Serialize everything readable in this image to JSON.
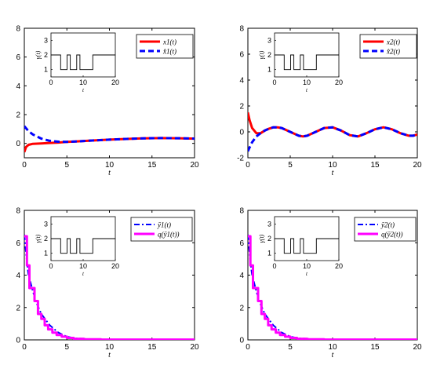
{
  "chart_data": [
    {
      "type": "line",
      "xlabel": "t",
      "xlim": [
        0,
        20
      ],
      "ylim": [
        -1,
        8
      ],
      "xticks": [
        "0",
        "5",
        "10",
        "15",
        "20"
      ],
      "yticks": [
        "0",
        "2",
        "4",
        "6",
        "8"
      ],
      "legend_position": "top-right",
      "series": [
        {
          "name": "x1(t)",
          "color": "#ff0000",
          "style": "solid",
          "x": [
            0,
            0.2,
            0.5,
            1,
            2,
            3,
            4,
            5,
            6,
            8,
            10,
            12,
            14,
            16,
            18,
            20
          ],
          "y": [
            -0.6,
            -0.25,
            -0.1,
            -0.03,
            0.0,
            0.03,
            0.06,
            0.1,
            0.13,
            0.2,
            0.26,
            0.31,
            0.35,
            0.37,
            0.36,
            0.33
          ]
        },
        {
          "name": "x̂1(t)",
          "color": "#0000ff",
          "style": "dashed",
          "x": [
            0,
            0.2,
            0.5,
            1,
            2,
            3,
            4,
            5,
            6,
            8,
            10,
            12,
            14,
            16,
            18,
            20
          ],
          "y": [
            1.2,
            1.05,
            0.85,
            0.62,
            0.33,
            0.18,
            0.12,
            0.11,
            0.13,
            0.2,
            0.26,
            0.31,
            0.35,
            0.37,
            0.36,
            0.33
          ]
        }
      ]
    },
    {
      "type": "line",
      "xlabel": "t",
      "xlim": [
        0,
        20
      ],
      "ylim": [
        -2,
        8
      ],
      "xticks": [
        "0",
        "5",
        "10",
        "15",
        "20"
      ],
      "yticks": [
        "-2",
        "0",
        "2",
        "4",
        "6",
        "8"
      ],
      "legend_position": "top-right",
      "series": [
        {
          "name": "x2(t)",
          "color": "#ff0000",
          "style": "solid",
          "x": [
            0,
            0.2,
            0.5,
            1,
            1.5,
            2,
            2.5,
            3,
            3.5,
            4,
            5,
            6,
            6.5,
            7,
            8,
            9,
            10,
            11,
            12,
            13,
            14,
            15,
            16,
            17,
            18,
            19,
            19.5,
            20
          ],
          "y": [
            1.5,
            0.9,
            0.3,
            -0.1,
            -0.1,
            0.1,
            0.25,
            0.35,
            0.35,
            0.3,
            0.0,
            -0.3,
            -0.35,
            -0.3,
            0.0,
            0.3,
            0.35,
            0.1,
            -0.25,
            -0.35,
            -0.1,
            0.2,
            0.35,
            0.2,
            -0.1,
            -0.3,
            -0.3,
            -0.2
          ]
        },
        {
          "name": "x̂2(t)",
          "color": "#0000ff",
          "style": "dashed",
          "x": [
            0,
            0.2,
            0.5,
            1,
            1.5,
            2,
            2.5,
            3,
            3.5,
            4,
            5,
            6,
            6.5,
            7,
            8,
            9,
            10,
            11,
            12,
            13,
            14,
            15,
            16,
            17,
            18,
            19,
            19.5,
            20
          ],
          "y": [
            -1.5,
            -1.2,
            -0.8,
            -0.35,
            -0.1,
            0.1,
            0.25,
            0.35,
            0.35,
            0.3,
            0.0,
            -0.3,
            -0.35,
            -0.3,
            0.0,
            0.3,
            0.35,
            0.1,
            -0.25,
            -0.35,
            -0.1,
            0.2,
            0.35,
            0.2,
            -0.1,
            -0.3,
            -0.3,
            -0.2
          ]
        }
      ]
    },
    {
      "type": "line",
      "xlabel": "t",
      "xlim": [
        0,
        20
      ],
      "ylim": [
        0,
        8
      ],
      "xticks": [
        "0",
        "5",
        "10",
        "15",
        "20"
      ],
      "yticks": [
        "0",
        "2",
        "4",
        "6",
        "8"
      ],
      "legend_position": "top-right",
      "series": [
        {
          "name": "ȳ1(t)",
          "color": "#0000ff",
          "style": "dashdot",
          "x": [
            0,
            0.3,
            0.5,
            1,
            1.5,
            2,
            3,
            4,
            5,
            6,
            8,
            10,
            20
          ],
          "y": [
            6.5,
            4.8,
            4.0,
            3.0,
            2.2,
            1.6,
            0.9,
            0.45,
            0.2,
            0.1,
            0.03,
            0.01,
            0
          ]
        },
        {
          "name": "q(ȳ1(t))",
          "color": "#ff00ff",
          "style": "step",
          "width": 3,
          "x": [
            0,
            0.3,
            0.3,
            0.6,
            0.6,
            1.2,
            1.2,
            1.6,
            1.6,
            2.0,
            2.0,
            2.4,
            2.4,
            2.8,
            2.8,
            3.3,
            3.3,
            3.8,
            3.8,
            4.4,
            4.4,
            5.0,
            5.0,
            5.8,
            5.8,
            7.0,
            7.0,
            9.0,
            9.0,
            20
          ],
          "y": [
            6.4,
            6.4,
            4.6,
            4.6,
            3.2,
            3.2,
            2.4,
            2.4,
            1.6,
            1.6,
            1.3,
            1.3,
            0.9,
            0.9,
            0.65,
            0.65,
            0.45,
            0.45,
            0.3,
            0.3,
            0.2,
            0.2,
            0.12,
            0.12,
            0.07,
            0.07,
            0.04,
            0.04,
            0.02,
            0.02
          ]
        }
      ]
    },
    {
      "type": "line",
      "xlabel": "t",
      "xlim": [
        0,
        20
      ],
      "ylim": [
        0,
        8
      ],
      "xticks": [
        "0",
        "5",
        "10",
        "15",
        "20"
      ],
      "yticks": [
        "0",
        "2",
        "4",
        "6",
        "8"
      ],
      "legend_position": "top-right",
      "series": [
        {
          "name": "ȳ2(t)",
          "color": "#0000ff",
          "style": "dashdot",
          "x": [
            0,
            0.3,
            0.5,
            1,
            1.5,
            2,
            3,
            4,
            5,
            6,
            8,
            10,
            20
          ],
          "y": [
            6.5,
            4.8,
            4.0,
            3.0,
            2.2,
            1.6,
            0.9,
            0.45,
            0.2,
            0.1,
            0.03,
            0.01,
            0
          ]
        },
        {
          "name": "q(ȳ2(t))",
          "color": "#ff00ff",
          "style": "step",
          "width": 3,
          "x": [
            0,
            0.3,
            0.3,
            0.6,
            0.6,
            1.2,
            1.2,
            1.6,
            1.6,
            2.0,
            2.0,
            2.4,
            2.4,
            2.8,
            2.8,
            3.3,
            3.3,
            3.8,
            3.8,
            4.4,
            4.4,
            5.0,
            5.0,
            5.8,
            5.8,
            7.0,
            7.0,
            9.0,
            9.0,
            20
          ],
          "y": [
            6.4,
            6.4,
            4.6,
            4.6,
            3.2,
            3.2,
            2.4,
            2.4,
            1.6,
            1.6,
            1.3,
            1.3,
            0.9,
            0.9,
            0.65,
            0.65,
            0.45,
            0.45,
            0.3,
            0.3,
            0.2,
            0.2,
            0.12,
            0.12,
            0.07,
            0.07,
            0.04,
            0.04,
            0.02,
            0.02
          ]
        }
      ]
    }
  ],
  "inset": {
    "type": "line",
    "ylabel": "γ(t)",
    "xlabel": "t",
    "xlim": [
      0,
      20
    ],
    "ylim": [
      0.5,
      3.5
    ],
    "xticks": [
      "0",
      "10",
      "20"
    ],
    "yticks": [
      "1",
      "2",
      "3"
    ],
    "x": [
      0,
      3,
      3,
      5,
      5,
      6,
      6,
      8,
      8,
      9,
      9,
      13,
      13,
      16,
      16,
      20
    ],
    "y": [
      2,
      2,
      1,
      1,
      2,
      2,
      1,
      1,
      2,
      2,
      1,
      1,
      2,
      2,
      2,
      2
    ]
  }
}
